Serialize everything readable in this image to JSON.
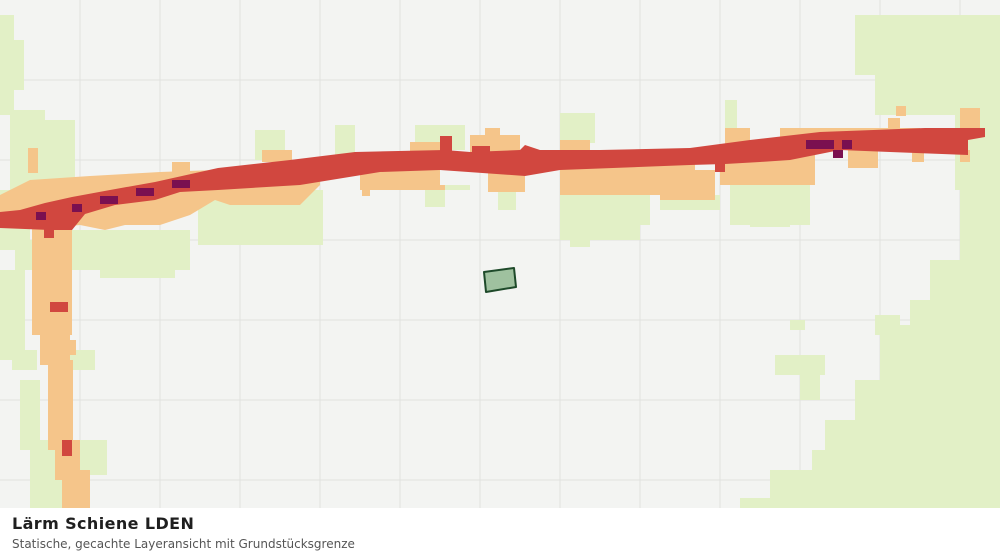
{
  "caption": {
    "title": "Lärm Schiene LDEN",
    "subtitle": "Statische, gecachte Layeransicht mit Grundstücksgrenze"
  },
  "legend_colors": {
    "background": "#f3f4f2",
    "grid": "#e0e2df",
    "noise_low": "#e2f0c6",
    "noise_medium": "#f5c58a",
    "noise_high": "#d1473f",
    "noise_very_high": "#7a1050",
    "parcel_fill": "#9fc19f",
    "parcel_stroke": "#1e4a2a"
  }
}
